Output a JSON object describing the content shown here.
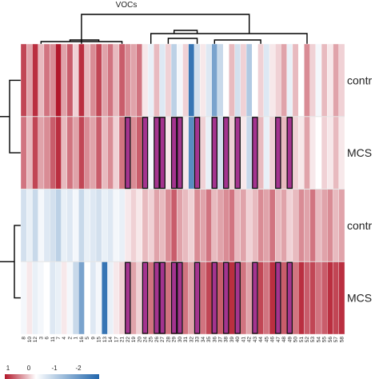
{
  "chart_data": {
    "type": "heatmap",
    "title": "VOCs",
    "columns": [
      "8",
      "10",
      "12",
      "3",
      "6",
      "11",
      "7",
      "4",
      "2",
      "1",
      "16",
      "5",
      "9",
      "15",
      "13",
      "14",
      "17",
      "21",
      "22",
      "19",
      "20",
      "24",
      "25",
      "26",
      "27",
      "28",
      "29",
      "30",
      "31",
      "32",
      "33",
      "34",
      "35",
      "36",
      "37",
      "38",
      "39",
      "40",
      "41",
      "42",
      "43",
      "44",
      "45",
      "46",
      "47",
      "48",
      "49",
      "50",
      "51",
      "52",
      "53",
      "54",
      "55",
      "56",
      "57",
      "58"
    ],
    "rows": [
      "contr",
      "MCS",
      "contr",
      "MCS"
    ],
    "col_groups": [
      "warm",
      "warm",
      "warm",
      "warm",
      "warm",
      "warm",
      "warm",
      "warm",
      "warm",
      "warm",
      "warm",
      "warm",
      "warm",
      "warm",
      "warm",
      "warm",
      "warm",
      "warm",
      "warm",
      "warm",
      "warm",
      "cool",
      "cool",
      "cool",
      "cool",
      "cool",
      "cool",
      "cool",
      "cool",
      "cool",
      "cool",
      "cool",
      "cool",
      "cool",
      "cool",
      "cool",
      "cool",
      "cool",
      "cool",
      "cool",
      "cool",
      "cool",
      "cool",
      "cool",
      "cool",
      "cool",
      "cool",
      "cool",
      "cool",
      "cool",
      "cool",
      "cool",
      "cool",
      "cool",
      "cool",
      "cool"
    ],
    "values": [
      [
        0.8,
        0.4,
        0.9,
        0.3,
        0.6,
        0.5,
        1.0,
        0.4,
        0.7,
        0.2,
        0.9,
        0.3,
        0.5,
        0.8,
        0.4,
        0.6,
        0.3,
        0.7,
        0.5,
        0.4,
        0.6,
        0.1,
        -0.2,
        0.3,
        -0.3,
        0.2,
        -0.6,
        -0.1,
        0.2,
        -1.8,
        -0.4,
        0.1,
        -0.3,
        -1.2,
        -0.5,
        0.0,
        0.3,
        -0.4,
        0.2,
        -0.7,
        0.0,
        0.2,
        -0.3,
        0.1,
        0.2,
        0.4,
        -0.2,
        0.3,
        0.0,
        0.5,
        0.2,
        -0.1,
        0.3,
        0.1,
        0.4,
        0.2
      ],
      [
        0.6,
        0.3,
        0.8,
        0.4,
        0.5,
        0.7,
        0.9,
        0.3,
        0.6,
        0.4,
        0.8,
        0.5,
        0.4,
        0.7,
        0.3,
        0.5,
        0.2,
        0.6,
        0.4,
        0.5,
        0.7,
        0.2,
        -0.1,
        0.2,
        -0.2,
        0.1,
        -0.5,
        0.0,
        0.1,
        -1.5,
        -0.3,
        0.2,
        -0.2,
        -0.9,
        -0.4,
        0.1,
        0.2,
        -0.3,
        0.1,
        -0.5,
        0.1,
        0.3,
        -0.2,
        0.2,
        0.1,
        0.3,
        -0.1,
        0.2,
        0.1,
        0.4,
        0.1,
        0.0,
        0.2,
        0.1,
        0.3,
        0.1
      ],
      [
        -0.4,
        -0.2,
        -0.5,
        -0.1,
        -0.3,
        -0.4,
        -0.6,
        -0.2,
        -0.3,
        -0.1,
        -0.5,
        -0.2,
        -0.3,
        -0.4,
        -0.2,
        -0.3,
        -0.1,
        -0.2,
        0.1,
        0.2,
        0.1,
        0.3,
        0.2,
        0.4,
        0.3,
        0.5,
        0.7,
        0.4,
        0.3,
        0.2,
        0.5,
        0.4,
        0.6,
        0.3,
        0.4,
        0.5,
        0.6,
        0.3,
        0.4,
        0.2,
        0.3,
        0.5,
        0.4,
        0.6,
        0.3,
        0.4,
        0.2,
        0.3,
        0.5,
        0.4,
        0.6,
        0.3,
        0.4,
        0.5,
        0.3,
        0.4
      ],
      [
        -0.1,
        0.1,
        -0.2,
        -0.1,
        0.0,
        -0.3,
        -0.2,
        0.1,
        -0.1,
        -0.5,
        -1.2,
        0.0,
        -0.3,
        -0.1,
        -1.8,
        -0.2,
        0.1,
        0.2,
        0.3,
        0.4,
        0.2,
        0.5,
        0.6,
        0.4,
        0.7,
        0.6,
        0.8,
        0.5,
        0.6,
        0.4,
        0.7,
        0.6,
        0.8,
        0.5,
        0.7,
        0.6,
        0.9,
        0.5,
        0.6,
        0.4,
        0.7,
        0.8,
        0.6,
        0.9,
        0.5,
        0.7,
        0.8,
        0.6,
        0.9,
        0.7,
        0.8,
        0.6,
        0.7,
        0.9,
        0.8,
        0.9
      ]
    ],
    "outlined_cells": [
      [],
      [
        18,
        21,
        23,
        24,
        26,
        27,
        30,
        33,
        35,
        37,
        40,
        44,
        46
      ],
      [],
      [
        18,
        21,
        23,
        24,
        26,
        27,
        30,
        33,
        35,
        37,
        40,
        44,
        46
      ]
    ],
    "colorbar": {
      "ticks": [
        "1",
        "0",
        "-1",
        "-2"
      ],
      "range": [
        -2,
        1
      ]
    },
    "outline_color": "#a4348f",
    "colors": {
      "high": "#b2182b",
      "mid": "#ffffff",
      "low": "#2166ac"
    }
  }
}
